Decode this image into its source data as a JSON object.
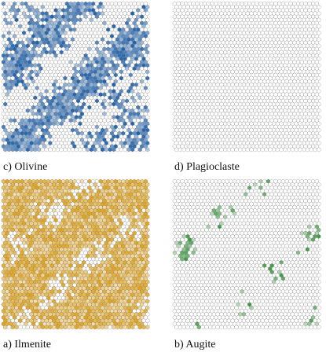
{
  "panels": [
    {
      "label": "c) Olivine",
      "color": "#1f62ad"
    },
    {
      "label": "d) Plagioclaste",
      "color": "#c8324f"
    },
    {
      "label": "a) Ilmenite",
      "color": "#e0a31c"
    },
    {
      "label": "b) Augite",
      "color": "#3f9a44"
    }
  ]
}
